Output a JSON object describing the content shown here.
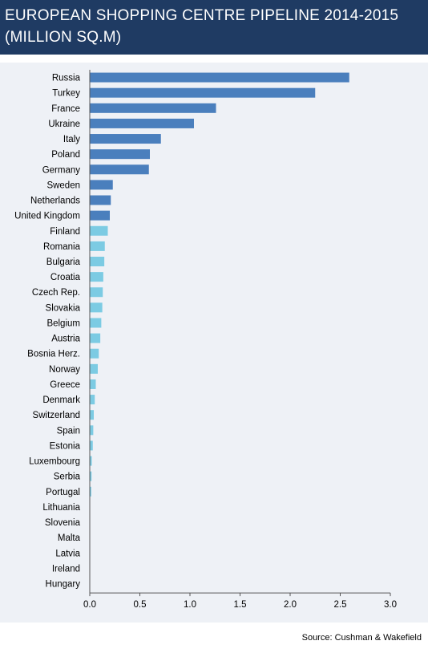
{
  "title": "EUROPEAN SHOPPING CENTRE PIPELINE 2014-2015 (MILLION SQ.M)",
  "source": "Source: Cushman & Wakefield",
  "colors": {
    "header_bg": "#1f3b63",
    "dark_bar": "#4a7fbd",
    "light_bar": "#7ccbe3",
    "panel_bg": "#eef1f6"
  },
  "chart_data": {
    "type": "bar",
    "orientation": "horizontal",
    "title": "EUROPEAN SHOPPING CENTRE PIPELINE 2014-2015 (MILLION SQ.M)",
    "xlabel": "",
    "ylabel": "",
    "xlim": [
      0,
      3.0
    ],
    "xticks": [
      "0.0",
      "0.5",
      "1.0",
      "1.5",
      "2.0",
      "2.5",
      "3.0"
    ],
    "grid": false,
    "categories": [
      "Russia",
      "Turkey",
      "France",
      "Ukraine",
      "Italy",
      "Poland",
      "Germany",
      "Sweden",
      "Netherlands",
      "United Kingdom",
      "Finland",
      "Romania",
      "Bulgaria",
      "Croatia",
      "Czech Rep.",
      "Slovakia",
      "Belgium",
      "Austria",
      "Bosnia Herz.",
      "Norway",
      "Greece",
      "Denmark",
      "Switzerland",
      "Spain",
      "Estonia",
      "Luxembourg",
      "Serbia",
      "Portugal",
      "Lithuania",
      "Slovenia",
      "Malta",
      "Latvia",
      "Ireland",
      "Hungary"
    ],
    "values": [
      2.59,
      2.25,
      1.26,
      1.04,
      0.71,
      0.6,
      0.59,
      0.23,
      0.21,
      0.2,
      0.18,
      0.15,
      0.145,
      0.135,
      0.13,
      0.125,
      0.115,
      0.105,
      0.09,
      0.08,
      0.06,
      0.05,
      0.04,
      0.035,
      0.03,
      0.02,
      0.018,
      0.015,
      0.004,
      0.003,
      0.002,
      0.002,
      0.001,
      0.001
    ],
    "bar_colors": [
      "#4a7fbd",
      "#4a7fbd",
      "#4a7fbd",
      "#4a7fbd",
      "#4a7fbd",
      "#4a7fbd",
      "#4a7fbd",
      "#4a7fbd",
      "#4a7fbd",
      "#4a7fbd",
      "#7ccbe3",
      "#7ccbe3",
      "#7ccbe3",
      "#7ccbe3",
      "#7ccbe3",
      "#7ccbe3",
      "#7ccbe3",
      "#7ccbe3",
      "#7ccbe3",
      "#7ccbe3",
      "#7ccbe3",
      "#7ccbe3",
      "#7ccbe3",
      "#7ccbe3",
      "#7ccbe3",
      "#7ccbe3",
      "#7ccbe3",
      "#7ccbe3",
      "#7ccbe3",
      "#7ccbe3",
      "#7ccbe3",
      "#7ccbe3",
      "#7ccbe3",
      "#7ccbe3"
    ]
  }
}
